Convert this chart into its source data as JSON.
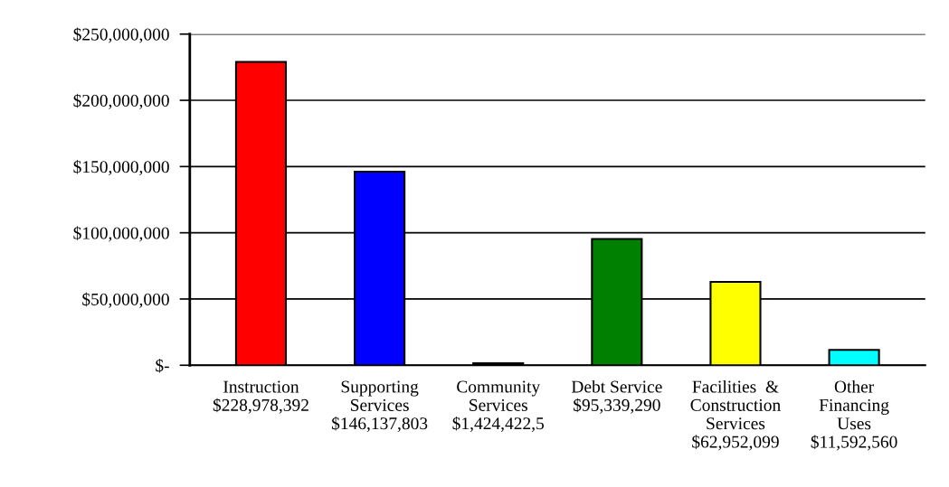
{
  "chart_data": {
    "type": "bar",
    "categories": [
      "Instruction\n$228,978,392",
      "Supporting\nServices\n$146,137,803",
      "Community\nServices\n$1,424,422,5",
      "Debt Service\n$95,339,290",
      "Facilities  &\nConstruction\nServices\n$62,952,099",
      "Other\nFinancing\nUses\n$11,592,560"
    ],
    "values": [
      228978392,
      146137803,
      1424422.5,
      95339290,
      62952099,
      11592560
    ],
    "colors": [
      "#ff0000",
      "#0000ff",
      "#000000",
      "#008000",
      "#ffff00",
      "#00ffff"
    ],
    "ylim": [
      0,
      250000000
    ],
    "yticks": [
      {
        "value": 0,
        "label": "$-"
      },
      {
        "value": 50000000,
        "label": "$50,000,000"
      },
      {
        "value": 100000000,
        "label": "$100,000,000"
      },
      {
        "value": 150000000,
        "label": "$150,000,000"
      },
      {
        "value": 200000000,
        "label": "$200,000,000"
      },
      {
        "value": 250000000,
        "label": "$250,000,000"
      }
    ],
    "grid": "y",
    "legend": false
  }
}
